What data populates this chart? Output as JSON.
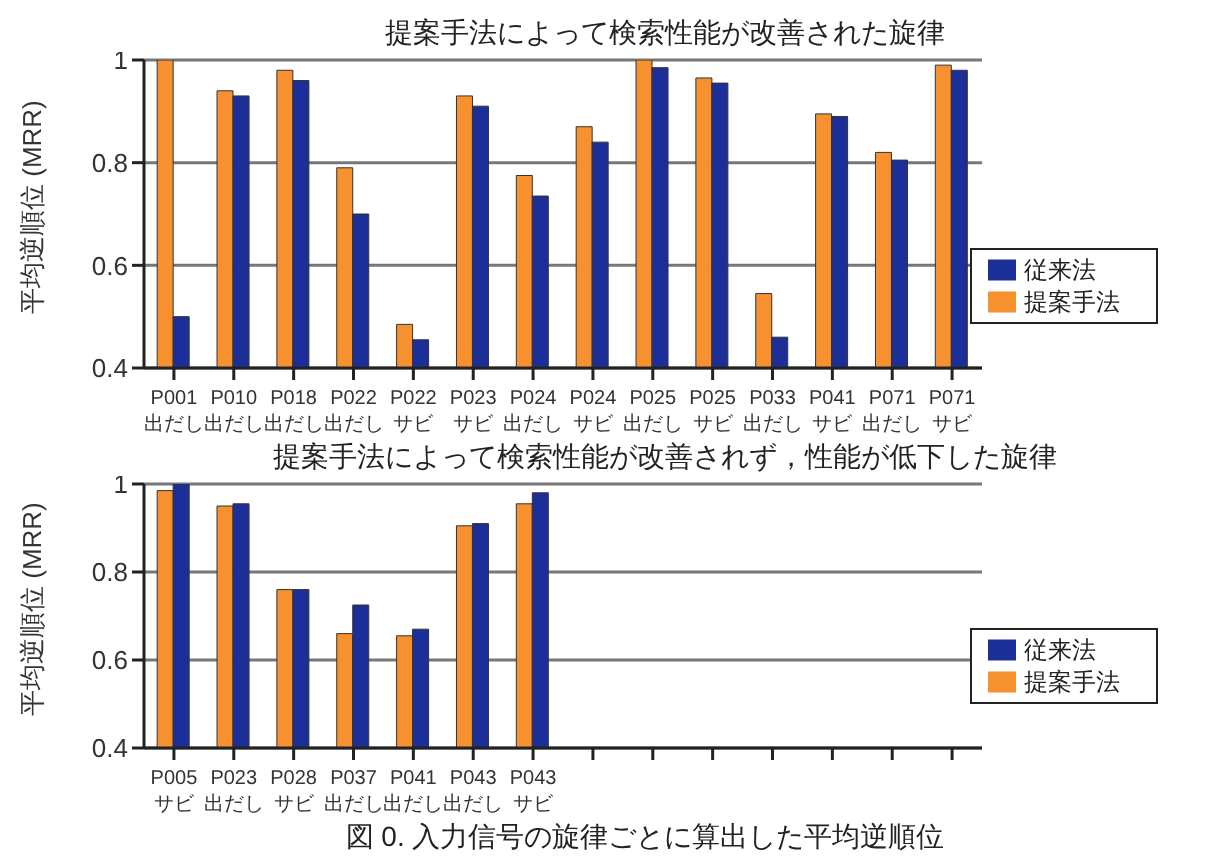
{
  "chart_data": [
    {
      "type": "bar",
      "title": "提案手法によって検索性能が改善された旋律",
      "ylabel": "平均逆順位 (MRR)",
      "categories": [
        "P001 出だし",
        "P010 出だし",
        "P018 出だし",
        "P022 出だし",
        "P022 サビ",
        "P023 サビ",
        "P024 出だし",
        "P024 サビ",
        "P025 出だし",
        "P025 サビ",
        "P033 出だし",
        "P041 サビ",
        "P071 出だし",
        "P071 サビ"
      ],
      "series": [
        {
          "name": "提案手法",
          "color": "#f7902f",
          "values": [
            1.0,
            0.94,
            0.98,
            0.79,
            0.485,
            0.93,
            0.775,
            0.87,
            1.0,
            0.965,
            0.545,
            0.895,
            0.82,
            0.99
          ]
        },
        {
          "name": "従来法",
          "color": "#1c2f99",
          "values": [
            0.5,
            0.93,
            0.96,
            0.7,
            0.455,
            0.91,
            0.735,
            0.84,
            0.985,
            0.955,
            0.46,
            0.89,
            0.805,
            0.98
          ]
        }
      ],
      "ylim": [
        0.4,
        1
      ],
      "yticks": [
        0.4,
        0.6,
        0.8,
        1
      ],
      "grid": "y",
      "legend": "bottom right"
    },
    {
      "type": "bar",
      "title": "提案手法によって検索性能が改善されず，性能が低下した旋律",
      "ylabel": "平均逆順位 (MRR)",
      "categories": [
        "P005 サビ",
        "P023 出だし",
        "P028 サビ",
        "P037 出だし",
        "P041 出だし",
        "P043 出だし",
        "P043 サビ",
        null,
        null,
        null,
        null,
        null,
        null,
        null
      ],
      "series": [
        {
          "name": "提案手法",
          "color": "#f7902f",
          "values": [
            0.985,
            0.95,
            0.76,
            0.66,
            0.655,
            0.905,
            0.955,
            null,
            null,
            null,
            null,
            null,
            null,
            null
          ]
        },
        {
          "name": "従来法",
          "color": "#1c2f99",
          "values": [
            1.0,
            0.955,
            0.76,
            0.725,
            0.67,
            0.91,
            0.98,
            null,
            null,
            null,
            null,
            null,
            null,
            null
          ]
        }
      ],
      "ylim": [
        0.4,
        1
      ],
      "yticks": [
        0.4,
        0.6,
        0.8,
        1
      ],
      "grid": "y",
      "legend": "bottom right",
      "annotations": [
        "図 0. 入力信号の旋律ごとに算出した平均逆順位"
      ]
    }
  ]
}
